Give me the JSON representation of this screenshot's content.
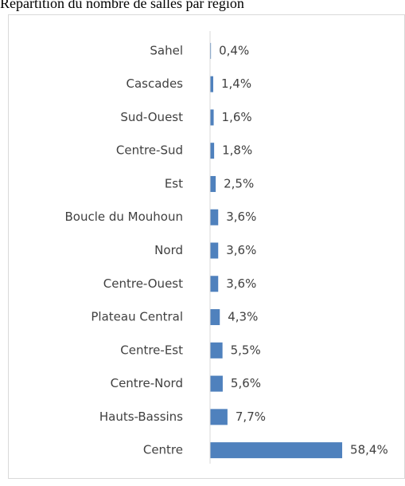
{
  "chart_data": {
    "type": "bar",
    "orientation": "horizontal",
    "title": "Répartition du nombre de salles par région",
    "categories": [
      "Sahel",
      "Cascades",
      "Sud-Ouest",
      "Centre-Sud",
      "Est",
      "Boucle du Mouhoun",
      "Nord",
      "Centre-Ouest",
      "Plateau Central",
      "Centre-Est",
      "Centre-Nord",
      "Hauts-Bassins",
      "Centre"
    ],
    "values": [
      0.4,
      1.4,
      1.6,
      1.8,
      2.5,
      3.6,
      3.6,
      3.6,
      4.3,
      5.5,
      5.6,
      7.7,
      58.4
    ],
    "value_labels": [
      "0,4%",
      "1,4%",
      "1,6%",
      "1,8%",
      "2,5%",
      "3,6%",
      "3,6%",
      "3,6%",
      "4,3%",
      "5,5%",
      "5,6%",
      "7,7%",
      "58,4%"
    ],
    "color": "#4f81bd",
    "xlim": [
      0,
      60
    ]
  }
}
